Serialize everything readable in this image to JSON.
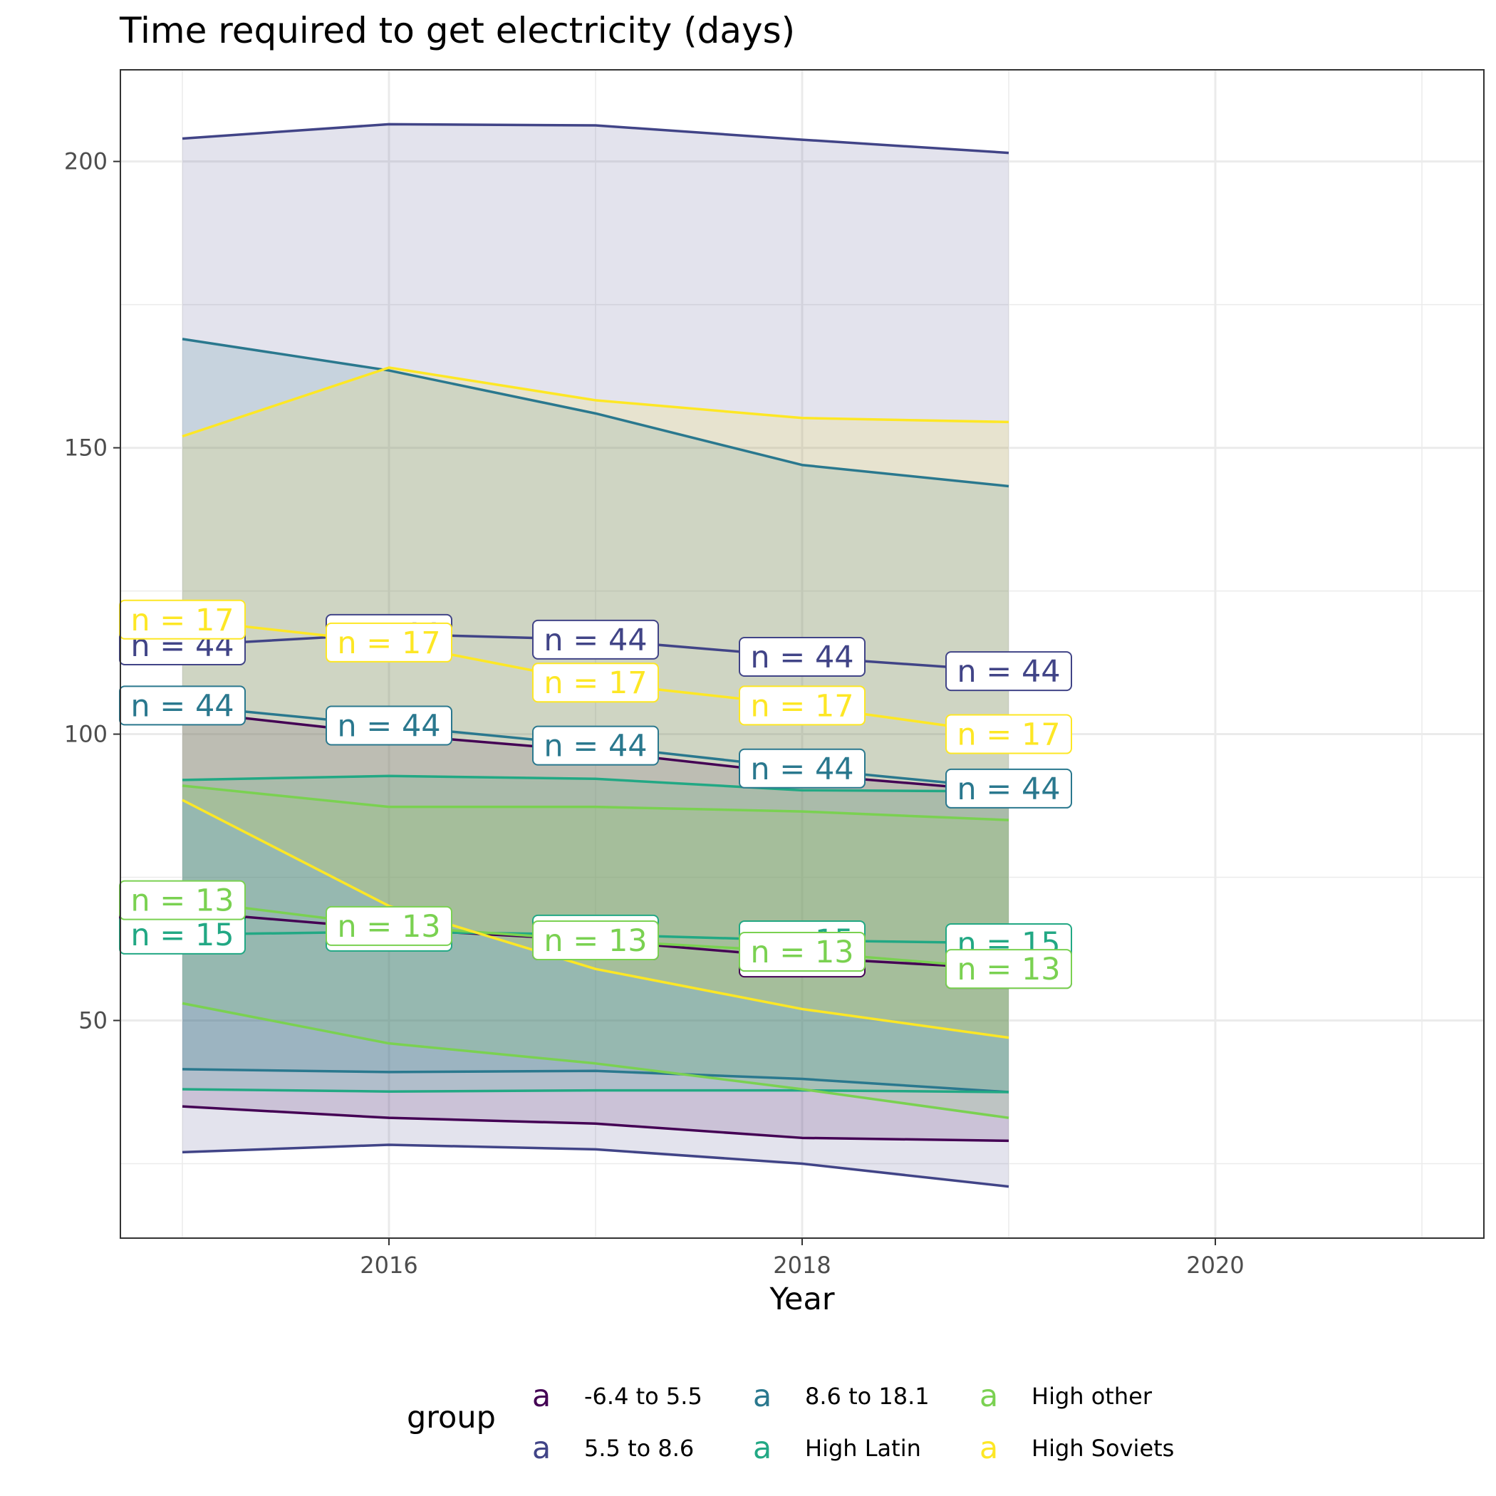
{
  "chart_data": {
    "type": "area",
    "title": "Time required to get electricity (days)",
    "xlabel": "Year",
    "ylabel": "",
    "x": [
      2015,
      2016,
      2017,
      2018,
      2019
    ],
    "xlim": [
      2014.7,
      2021.3
    ],
    "ylim": [
      12,
      216
    ],
    "xticks": [
      2016,
      2018,
      2020
    ],
    "yticks": [
      50,
      100,
      150,
      200
    ],
    "grid": true,
    "legend": {
      "title": "group",
      "position": "bottom",
      "key_glyph": "a",
      "entries": [
        "-6.4 to 5.5",
        "5.5 to 8.6",
        "8.6 to 18.1",
        "High Latin",
        "High other",
        "High Soviets"
      ]
    },
    "series": [
      {
        "name": "-6.4 to 5.5",
        "color": "#440154",
        "n": 44,
        "mean": [
          69,
          66,
          64,
          61,
          59
        ],
        "upper": [
          104,
          100,
          97,
          93,
          90
        ],
        "lower": [
          35,
          33,
          32,
          29.5,
          29
        ]
      },
      {
        "name": "5.5 to 8.6",
        "color": "#414487",
        "n": 44,
        "mean": [
          115.5,
          117.5,
          116.5,
          113.5,
          111
        ],
        "upper": [
          204,
          206.5,
          206.3,
          203.8,
          201.5
        ],
        "lower": [
          27,
          28.3,
          27.5,
          25,
          21
        ]
      },
      {
        "name": "8.6 to 18.1",
        "color": "#2A788E",
        "n": 44,
        "mean": [
          105,
          101.5,
          98,
          94,
          90.5
        ],
        "upper": [
          169,
          163.5,
          156,
          147,
          143.3
        ],
        "lower": [
          41.5,
          41,
          41.2,
          39.8,
          37.5
        ]
      },
      {
        "name": "High Latin",
        "color": "#22A884",
        "n": 15,
        "mean": [
          65,
          65.5,
          65,
          64,
          63.5
        ],
        "upper": [
          92,
          92.7,
          92.2,
          90.2,
          90
        ],
        "lower": [
          38,
          37.6,
          37.8,
          37.8,
          37.5
        ]
      },
      {
        "name": "High other",
        "color": "#7AD151",
        "n": 13,
        "mean": [
          71,
          66.5,
          64,
          62,
          59
        ],
        "upper": [
          91,
          87.3,
          87.3,
          86.5,
          85
        ],
        "lower": [
          53,
          46,
          42.5,
          38,
          33
        ]
      },
      {
        "name": "High Soviets",
        "color": "#FDE725",
        "n": 17,
        "mean": [
          120,
          116,
          109,
          105,
          100
        ],
        "upper": [
          152,
          164,
          158.3,
          155.2,
          154.5
        ],
        "lower": [
          88.5,
          70,
          59,
          52,
          47
        ]
      }
    ]
  }
}
